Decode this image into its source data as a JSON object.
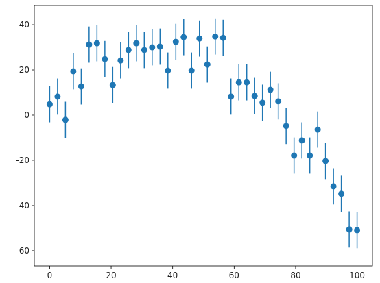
{
  "chart_data": {
    "type": "errorbar",
    "color": "#1f77b4",
    "x": [
      0,
      2.56,
      5.13,
      7.69,
      10.26,
      12.82,
      15.38,
      17.95,
      20.51,
      23.08,
      25.64,
      28.21,
      30.77,
      33.33,
      35.9,
      38.46,
      41.03,
      43.59,
      46.15,
      48.72,
      51.28,
      53.85,
      56.41,
      58.97,
      61.54,
      64.1,
      66.67,
      69.23,
      71.79,
      74.36,
      76.92,
      79.49,
      82.05,
      84.62,
      87.18,
      89.74,
      92.31,
      94.87,
      97.44,
      100
    ],
    "values": [
      4.8,
      8.2,
      -2.1,
      19.4,
      12.7,
      31.2,
      31.8,
      24.8,
      13.3,
      24.2,
      28.8,
      31.8,
      28.8,
      30,
      30.3,
      19.7,
      32.4,
      34.5,
      19.7,
      33.9,
      22.4,
      34.8,
      34.2,
      8.2,
      14.5,
      14.5,
      8.5,
      5.5,
      11.2,
      6.1,
      -4.8,
      -17.9,
      -11.2,
      -17.9,
      -6.4,
      -20.3,
      -31.5,
      -34.8,
      -50.6,
      -50.9
    ],
    "errors": [
      8,
      8,
      8,
      8,
      8,
      8,
      8,
      8,
      8,
      8,
      8,
      8,
      8,
      8,
      8,
      8,
      8,
      8,
      8,
      8,
      8,
      8,
      8,
      8,
      8,
      8,
      8,
      8,
      8,
      8,
      8,
      8,
      8,
      8,
      8,
      8,
      8,
      8,
      8,
      8
    ],
    "xlim": [
      -5,
      105
    ],
    "xticks": [
      0,
      20,
      40,
      60,
      80,
      100
    ],
    "ylim": [
      -66.7,
      48.5
    ],
    "yticks": [
      -60,
      -40,
      -20,
      0,
      20,
      40
    ]
  }
}
